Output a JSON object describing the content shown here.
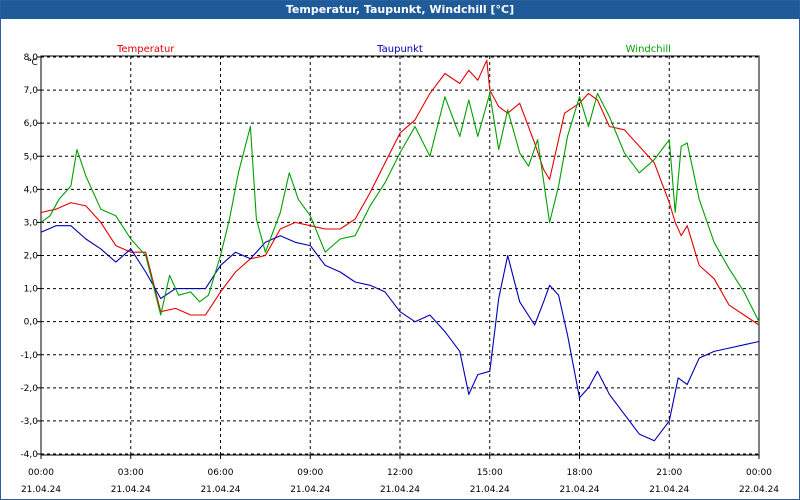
{
  "title": "Temperatur, Taupunkt, Windchill [°C]",
  "chart_data": {
    "type": "line",
    "ylabel": "°C",
    "xlabel": "",
    "ylim": [
      -4.0,
      8.0
    ],
    "xlim": [
      0,
      24
    ],
    "grid": true,
    "legend_position": "top",
    "y_ticks": [
      "8,0",
      "7,0",
      "6,0",
      "5,0",
      "4,0",
      "3,0",
      "2,0",
      "1,0",
      "0,0",
      "-1,0",
      "-2,0",
      "-3,0",
      "-4,0"
    ],
    "x_ticks": [
      {
        "time": "00:00",
        "date": "21.04.24"
      },
      {
        "time": "03:00",
        "date": "21.04.24"
      },
      {
        "time": "06:00",
        "date": "21.04.24"
      },
      {
        "time": "09:00",
        "date": "21.04.24"
      },
      {
        "time": "12:00",
        "date": "21.04.24"
      },
      {
        "time": "15:00",
        "date": "21.04.24"
      },
      {
        "time": "18:00",
        "date": "21.04.24"
      },
      {
        "time": "21:00",
        "date": "21.04.24"
      },
      {
        "time": "00:00",
        "date": "22.04.24"
      }
    ],
    "series": [
      {
        "name": "Temperatur",
        "color": "#e60000",
        "x": [
          0,
          0.5,
          1,
          1.5,
          2,
          2.5,
          3,
          3.5,
          4,
          4.5,
          5,
          5.5,
          6,
          6.5,
          7,
          7.5,
          8,
          8.5,
          9,
          9.5,
          10,
          10.5,
          11,
          11.5,
          12,
          12.5,
          13,
          13.5,
          14,
          14.3,
          14.6,
          14.9,
          15,
          15.3,
          15.6,
          16,
          16.5,
          16.8,
          17,
          17.5,
          18,
          18.3,
          18.6,
          19,
          19.5,
          20,
          20.5,
          21,
          21.2,
          21.4,
          21.6,
          22,
          22.5,
          23,
          23.5,
          24
        ],
        "values": [
          3.3,
          3.4,
          3.6,
          3.5,
          3.0,
          2.3,
          2.1,
          2.1,
          0.3,
          0.4,
          0.2,
          0.2,
          0.9,
          1.5,
          1.9,
          2.0,
          2.8,
          3.0,
          2.9,
          2.8,
          2.8,
          3.1,
          3.9,
          4.8,
          5.7,
          6.1,
          6.9,
          7.5,
          7.2,
          7.6,
          7.3,
          7.9,
          7.0,
          6.5,
          6.3,
          6.6,
          5.4,
          4.6,
          4.3,
          6.3,
          6.6,
          6.9,
          6.7,
          5.9,
          5.8,
          5.3,
          4.8,
          3.6,
          3.0,
          2.6,
          2.9,
          1.7,
          1.3,
          0.5,
          0.2,
          -0.1
        ]
      },
      {
        "name": "Taupunkt",
        "color": "#0000b4",
        "x": [
          0,
          0.5,
          1,
          1.5,
          2,
          2.5,
          3,
          3.5,
          4,
          4.5,
          5,
          5.5,
          6,
          6.5,
          7,
          7.5,
          8,
          8.5,
          9,
          9.5,
          10,
          10.5,
          11,
          11.5,
          12,
          12.5,
          13,
          13.5,
          14,
          14.3,
          14.6,
          15,
          15.3,
          15.6,
          16,
          16.5,
          16.8,
          17,
          17.3,
          17.6,
          18,
          18.3,
          18.6,
          19,
          19.5,
          20,
          20.5,
          21,
          21.3,
          21.6,
          22,
          22.5,
          23,
          23.5,
          24
        ],
        "values": [
          2.7,
          2.9,
          2.9,
          2.5,
          2.2,
          1.8,
          2.2,
          1.5,
          0.7,
          1.0,
          1.0,
          1.0,
          1.7,
          2.1,
          1.9,
          2.4,
          2.6,
          2.4,
          2.3,
          1.7,
          1.5,
          1.2,
          1.1,
          0.9,
          0.3,
          0.0,
          0.2,
          -0.3,
          -0.9,
          -2.2,
          -1.6,
          -1.5,
          0.7,
          2.0,
          0.6,
          -0.1,
          0.6,
          1.1,
          0.8,
          -0.4,
          -2.3,
          -2.0,
          -1.5,
          -2.2,
          -2.8,
          -3.4,
          -3.6,
          -3.0,
          -1.7,
          -1.9,
          -1.1,
          -0.9,
          -0.8,
          -0.7,
          -0.6
        ]
      },
      {
        "name": "Windchill",
        "color": "#00a000",
        "x": [
          0,
          0.3,
          0.6,
          1,
          1.2,
          1.5,
          2,
          2.5,
          3,
          3.5,
          4,
          4.3,
          4.6,
          5,
          5.3,
          5.6,
          6,
          6.3,
          6.6,
          7,
          7.2,
          7.5,
          8,
          8.3,
          8.6,
          9,
          9.5,
          10,
          10.5,
          11,
          11.5,
          12,
          12.5,
          13,
          13.5,
          14,
          14.3,
          14.6,
          15,
          15.3,
          15.6,
          16,
          16.3,
          16.6,
          17,
          17.3,
          17.6,
          18,
          18.3,
          18.6,
          19,
          19.5,
          20,
          20.5,
          21,
          21.2,
          21.4,
          21.6,
          22,
          22.5,
          23,
          23.5,
          24
        ],
        "values": [
          3.0,
          3.2,
          3.7,
          4.1,
          5.2,
          4.4,
          3.4,
          3.2,
          2.5,
          2.0,
          0.2,
          1.4,
          0.8,
          0.9,
          0.6,
          0.8,
          2.0,
          3.1,
          4.5,
          5.9,
          3.1,
          2.1,
          3.3,
          4.5,
          3.7,
          3.2,
          2.1,
          2.5,
          2.6,
          3.5,
          4.2,
          5.1,
          5.9,
          5.0,
          6.8,
          5.6,
          6.7,
          5.6,
          6.9,
          5.2,
          6.4,
          5.1,
          4.7,
          5.5,
          3.0,
          4.1,
          5.6,
          6.8,
          5.9,
          6.9,
          6.2,
          5.1,
          4.5,
          4.9,
          5.5,
          3.3,
          5.3,
          5.4,
          3.7,
          2.4,
          1.6,
          0.9,
          0.0
        ]
      }
    ]
  }
}
